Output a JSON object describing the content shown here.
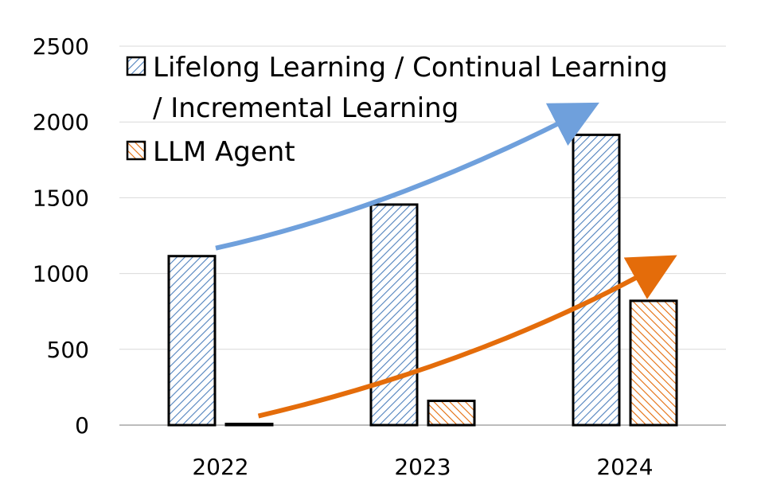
{
  "chart_data": {
    "type": "bar",
    "categories": [
      "2022",
      "2023",
      "2024"
    ],
    "series": [
      {
        "name": "Lifelong Learning / Continual Learning / Incremental Learning",
        "values": [
          1115,
          1455,
          1915
        ],
        "color": "#4f81bd",
        "pattern": "diagonal-hatch-up"
      },
      {
        "name": "LLM Agent",
        "values": [
          5,
          160,
          820
        ],
        "color": "#e46c0a",
        "pattern": "diagonal-hatch-down"
      }
    ],
    "ylim": [
      0,
      2500
    ],
    "yticks": [
      0,
      500,
      1000,
      1500,
      2000,
      2500
    ],
    "ytick_labels": [
      "0",
      "500",
      "1000",
      "1500",
      "2000",
      "2500"
    ],
    "grid": true,
    "legend": {
      "placement": "top-left",
      "entries": [
        {
          "line1": "Lifelong Learning / Continual Learning",
          "line2": "/ Incremental Learning"
        },
        {
          "line1": "LLM Agent",
          "line2": ""
        }
      ]
    },
    "annotations": [
      {
        "kind": "trend-arrow",
        "series": "Lifelong Learning / Continual Learning / Incremental Learning",
        "color": "#6fa0dc"
      },
      {
        "kind": "trend-arrow",
        "series": "LLM Agent",
        "color": "#e46c0a"
      }
    ],
    "title": "",
    "xlabel": "",
    "ylabel": ""
  }
}
